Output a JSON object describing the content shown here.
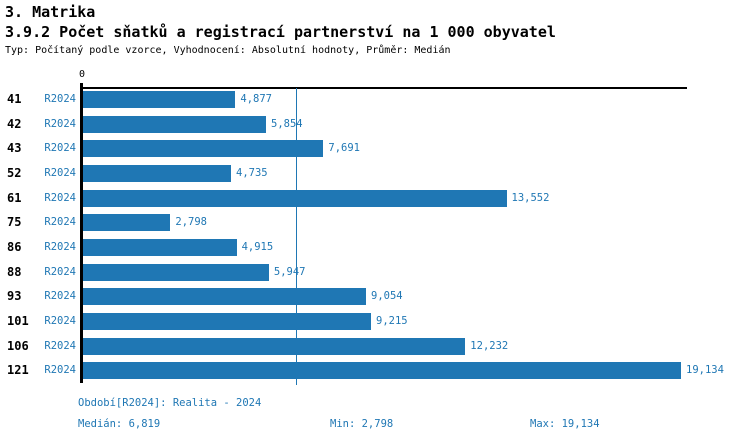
{
  "header": {
    "title": "3. Matrika",
    "subtitle": "3.9.2 Počet sňatků a registrací partnerství na 1 000 obyvatel",
    "meta": "Typ: Počítaný podle vzorce, Vyhodnocení: Absolutní hodnoty, Průměr: Medián"
  },
  "colors": {
    "bar": "#1f77b4",
    "blue_text": "#1f77b4",
    "median_line": "#1f77b4",
    "axis": "#000000"
  },
  "chart_data": {
    "type": "bar",
    "orientation": "horizontal",
    "title": "3.9.2 Počet sňatků a registrací partnerství na 1 000 obyvatel",
    "series_label": "R2024",
    "categories": [
      "41",
      "42",
      "43",
      "52",
      "61",
      "75",
      "86",
      "88",
      "93",
      "101",
      "106",
      "121"
    ],
    "values": [
      4.877,
      5.854,
      7.691,
      4.735,
      13.552,
      2.798,
      4.915,
      5.947,
      9.054,
      9.215,
      12.232,
      19.134
    ],
    "value_labels": [
      "4,877",
      "5,854",
      "7,691",
      "4,735",
      "13,552",
      "2,798",
      "4,915",
      "5,947",
      "9,054",
      "9,215",
      "12,232",
      "19,134"
    ],
    "axis_zero_label": "0",
    "xlim": [
      0,
      19.134
    ],
    "grid": false,
    "legend": false,
    "median_value": 6.819,
    "median_line": true,
    "stats": {
      "median": 6.819,
      "min": 2.798,
      "max": 19.134
    }
  },
  "footer": {
    "period": "Období[R2024]: Realita - 2024",
    "median": "Medián: 6,819",
    "min": "Min: 2,798",
    "max": "Max: 19,134"
  }
}
